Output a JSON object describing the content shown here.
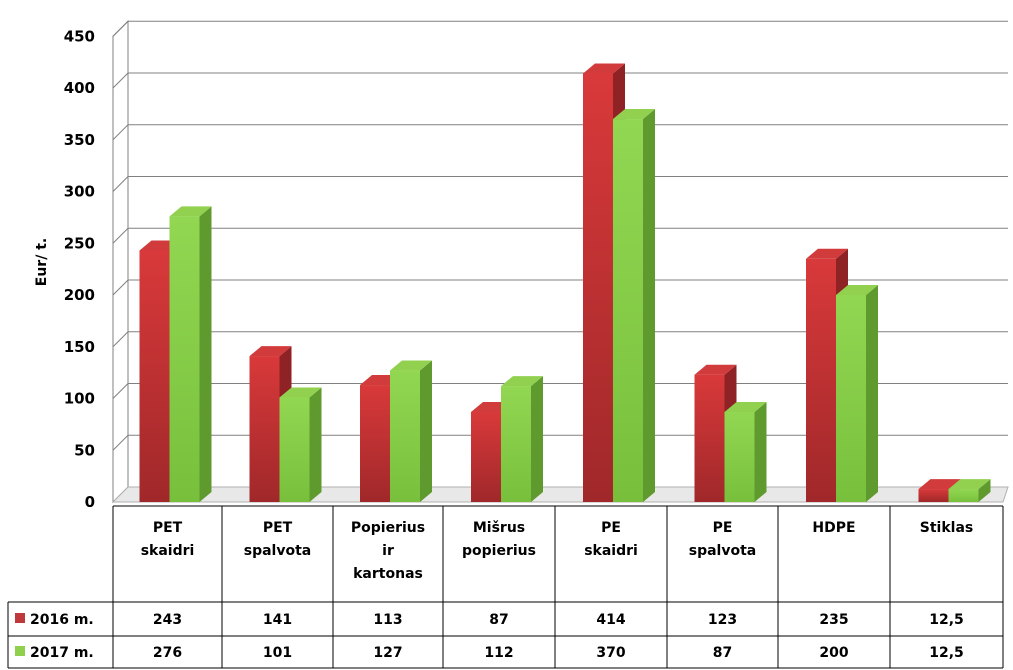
{
  "chart_data": {
    "type": "bar",
    "title": "",
    "ylabel": "Eur/ t.",
    "xlabel": "",
    "ylim": [
      0,
      450
    ],
    "yticks": [
      0,
      50,
      100,
      150,
      200,
      250,
      300,
      350,
      400,
      450
    ],
    "grid": true,
    "style": "3d-clustered-column-with-data-table",
    "categories": [
      [
        "PET",
        "skaidri"
      ],
      [
        "PET",
        "spalvota"
      ],
      [
        "Popierius",
        "ir",
        "kartonas"
      ],
      [
        "Mišrus",
        "popierius"
      ],
      [
        "PE",
        "skaidri"
      ],
      [
        "PE",
        "spalvota"
      ],
      [
        "HDPE"
      ],
      [
        "Stiklas"
      ]
    ],
    "series": [
      {
        "name": "2016 m.",
        "color": "#c0393a",
        "values": [
          243,
          141,
          113,
          87,
          414,
          123,
          235,
          12.5
        ],
        "labels": [
          "243",
          "141",
          "113",
          "87",
          "414",
          "123",
          "235",
          "12,5"
        ]
      },
      {
        "name": "2017 m.",
        "color": "#8fd14f",
        "values": [
          276,
          101,
          127,
          112,
          370,
          87,
          200,
          12.5
        ],
        "labels": [
          "276",
          "101",
          "127",
          "112",
          "370",
          "87",
          "200",
          "12,5"
        ]
      }
    ]
  }
}
